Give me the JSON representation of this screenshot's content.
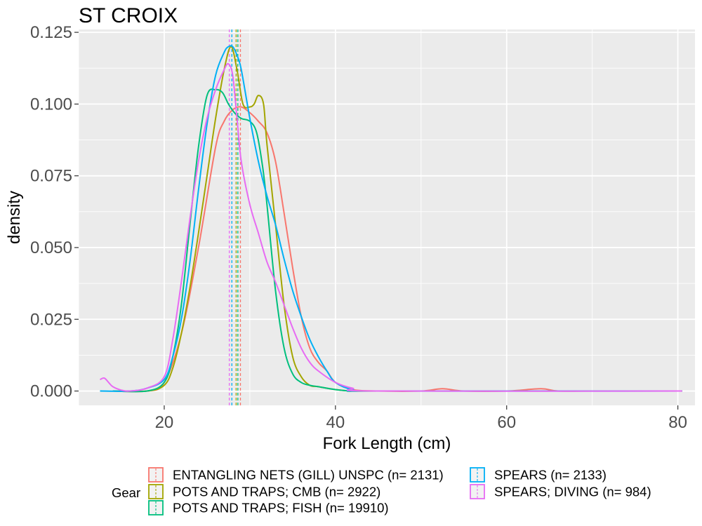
{
  "chart_data": {
    "type": "line",
    "subtype": "density",
    "title": "ST CROIX",
    "xlabel": "Fork Length (cm)",
    "ylabel": "density",
    "xlim": [
      10,
      82
    ],
    "ylim": [
      -0.005,
      0.126
    ],
    "x_ticks": [
      20,
      40,
      60,
      80
    ],
    "y_ticks": [
      0.0,
      0.025,
      0.05,
      0.075,
      0.1,
      0.125
    ],
    "y_tick_labels": [
      "0.000",
      "0.025",
      "0.050",
      "0.075",
      "0.100",
      "0.125"
    ],
    "grid": true,
    "legend": {
      "title": "Gear",
      "position": "bottom"
    },
    "series": [
      {
        "name": "ENTANGLING NETS (GILL) UNSPC (n= 2131)",
        "color": "#F8766D",
        "mean": 28.9,
        "x": [
          14,
          18,
          20,
          22,
          24,
          26,
          27,
          28,
          29,
          30,
          31,
          32,
          33,
          34,
          35,
          36,
          37,
          38,
          39,
          40,
          42,
          45,
          50,
          52.5,
          55,
          60,
          64,
          66,
          70,
          80.5
        ],
        "y": [
          0.0,
          0.0,
          0.003,
          0.02,
          0.05,
          0.085,
          0.094,
          0.098,
          0.099,
          0.097,
          0.094,
          0.09,
          0.08,
          0.062,
          0.043,
          0.026,
          0.015,
          0.01,
          0.007,
          0.003,
          0.0005,
          0.0,
          0.0,
          0.0008,
          0.0,
          0.0,
          0.0008,
          0.0,
          0.0,
          0.0
        ]
      },
      {
        "name": "POTS AND TRAPS; CMB (n= 2922)",
        "color": "#A3A500",
        "mean": 28.4,
        "x": [
          14,
          18,
          20,
          21,
          22,
          23,
          24,
          25,
          26,
          27,
          27.8,
          28.5,
          29.2,
          30,
          30.5,
          31,
          31.6,
          32,
          33,
          34,
          35,
          36,
          37,
          38,
          40,
          42,
          45,
          80.5
        ],
        "y": [
          0.0,
          0.0,
          0.002,
          0.008,
          0.02,
          0.036,
          0.055,
          0.075,
          0.095,
          0.112,
          0.12,
          0.112,
          0.1,
          0.099,
          0.1,
          0.103,
          0.1,
          0.086,
          0.058,
          0.03,
          0.012,
          0.005,
          0.002,
          0.0015,
          0.0005,
          0.0,
          0.0,
          0.0
        ]
      },
      {
        "name": "POTS AND TRAPS; FISH (n= 19910)",
        "color": "#00BF7D",
        "mean": 28.6,
        "x": [
          14,
          18,
          20,
          21,
          22,
          23,
          24,
          25,
          26,
          26.8,
          27.5,
          28.2,
          29,
          30,
          30.8,
          31.5,
          32,
          33,
          34,
          35,
          36,
          37,
          38,
          40,
          42,
          45,
          80.5
        ],
        "y": [
          0.0,
          0.0,
          0.003,
          0.012,
          0.03,
          0.058,
          0.085,
          0.103,
          0.105,
          0.104,
          0.1,
          0.097,
          0.095,
          0.094,
          0.09,
          0.078,
          0.065,
          0.035,
          0.015,
          0.006,
          0.003,
          0.002,
          0.0015,
          0.0005,
          0.0,
          0.0,
          0.0
        ]
      },
      {
        "name": "SPEARS (n= 2133)",
        "color": "#00B0F6",
        "mean": 27.9,
        "x": [
          12.5,
          16,
          18,
          20,
          21,
          22,
          23,
          24,
          25,
          26,
          27,
          27.5,
          28,
          28.5,
          29,
          30,
          31,
          32,
          33,
          34,
          35,
          36,
          37,
          38,
          39,
          40,
          42,
          45,
          80.5
        ],
        "y": [
          0.0,
          0.0,
          0.001,
          0.004,
          0.012,
          0.025,
          0.045,
          0.07,
          0.093,
          0.11,
          0.118,
          0.12,
          0.12,
          0.117,
          0.112,
          0.095,
          0.08,
          0.068,
          0.058,
          0.046,
          0.035,
          0.026,
          0.018,
          0.012,
          0.007,
          0.003,
          0.0005,
          0.0,
          0.0
        ]
      },
      {
        "name": "SPEARS; DIVING (n= 984)",
        "color": "#E76BF3",
        "mean": 27.6,
        "x": [
          12.5,
          13,
          13.5,
          14,
          15,
          16,
          18,
          20,
          21,
          22,
          23,
          24,
          25,
          26,
          27,
          27.5,
          28,
          28.5,
          29,
          30,
          31,
          32,
          33,
          34,
          35,
          36,
          37,
          38,
          40,
          42,
          45,
          80.5
        ],
        "y": [
          0.004,
          0.0045,
          0.003,
          0.0015,
          0.0003,
          0.0,
          0.001,
          0.005,
          0.018,
          0.038,
          0.06,
          0.08,
          0.095,
          0.105,
          0.112,
          0.114,
          0.11,
          0.095,
          0.08,
          0.065,
          0.055,
          0.045,
          0.038,
          0.03,
          0.022,
          0.015,
          0.01,
          0.007,
          0.003,
          0.001,
          0.0,
          0.0
        ]
      }
    ]
  }
}
